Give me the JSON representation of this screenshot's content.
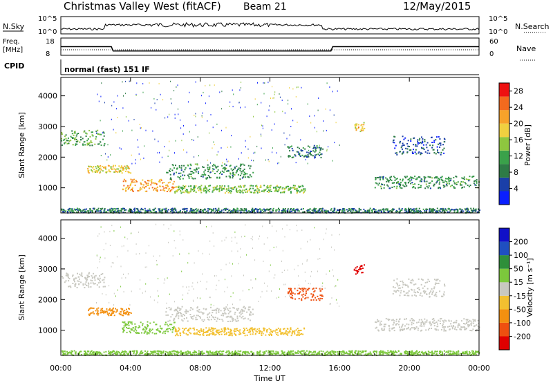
{
  "header": {
    "station": "Christmas Valley West (fitACF)",
    "beam": "Beam 21",
    "date": "12/May/2015"
  },
  "strip": {
    "nsky_label": "N.Sky",
    "nsky_ticks": [
      "10^5",
      "10^0"
    ],
    "nsearch_label": "N.Search",
    "freq_label_1": "Freq.",
    "freq_label_2": "[MHz]",
    "freq_ticks": [
      "18",
      "8"
    ],
    "nave_label": "Nave",
    "nave_ticks": [
      "60",
      "0"
    ],
    "cpid_label": "CPID",
    "mode": "normal (fast) 151 IF"
  },
  "colors": {
    "power": [
      "#0a1fff",
      "#1a3fa8",
      "#2e7b46",
      "#3aa14a",
      "#8ec63f",
      "#f0d040",
      "#f7a22a",
      "#f36a1e",
      "#e11"
    ],
    "velocity": [
      "#e00000",
      "#ee5010",
      "#f39010",
      "#f2c030",
      "#c8c8c0",
      "#7cc83c",
      "#2f8f3a",
      "#1f4fc0",
      "#1010c8"
    ]
  },
  "chart_data": [
    {
      "type": "line",
      "name": "sky-noise-and-nave",
      "x": [
        0,
        2.9,
        3,
        15.5,
        15.6,
        24
      ],
      "series": [
        {
          "name": "Freq.",
          "values": [
            13,
            13,
            10.5,
            10.5,
            13,
            13
          ]
        }
      ],
      "xlim": [
        0,
        24
      ],
      "ylim": [
        8,
        18
      ]
    },
    {
      "type": "heatmap",
      "name": "power",
      "title": "Power [dB]",
      "xlabel": "Time UT",
      "ylabel": "Slant Range [km]",
      "xticks": [
        "00:00",
        "04:00",
        "08:00",
        "12:00",
        "16:00",
        "20:00",
        "00:00"
      ],
      "yticks": [
        "1000",
        "2000",
        "3000",
        "4000"
      ],
      "ytick_values": [
        1000,
        2000,
        3000,
        4000
      ],
      "xlim": [
        0,
        24
      ],
      "ylim": [
        180,
        4600
      ],
      "colorbar_ticks": [
        "4",
        "8",
        "12",
        "16",
        "20",
        "24",
        "28"
      ],
      "colorbar_range": [
        0,
        30
      ],
      "echo_regions": [
        {
          "t0": 0,
          "t1": 2.5,
          "r0": 2400,
          "r1": 2900,
          "value": 12
        },
        {
          "t0": 1.5,
          "t1": 4,
          "r0": 1500,
          "r1": 1750,
          "value": 18
        },
        {
          "t0": 3.5,
          "t1": 6.5,
          "r0": 900,
          "r1": 1300,
          "value": 22
        },
        {
          "t0": 6.5,
          "t1": 14,
          "r0": 850,
          "r1": 1100,
          "value": 14
        },
        {
          "t0": 6,
          "t1": 11,
          "r0": 1300,
          "r1": 1800,
          "value": 10
        },
        {
          "t0": 13,
          "t1": 15,
          "r0": 2000,
          "r1": 2400,
          "value": 8
        },
        {
          "t0": 16.8,
          "t1": 17.4,
          "r0": 2850,
          "r1": 3150,
          "value": 20
        },
        {
          "t0": 18,
          "t1": 24,
          "r0": 1000,
          "r1": 1400,
          "value": 10
        },
        {
          "t0": 19,
          "t1": 22,
          "r0": 2100,
          "r1": 2700,
          "value": 6
        },
        {
          "t0": 0,
          "t1": 24,
          "r0": 200,
          "r1": 350,
          "value": 8
        }
      ]
    },
    {
      "type": "heatmap",
      "name": "velocity",
      "title": "Velocity [m s⁻¹]",
      "xlabel": "Time UT",
      "ylabel": "Slant Range [km]",
      "xticks": [
        "00:00",
        "04:00",
        "08:00",
        "12:00",
        "16:00",
        "20:00",
        "00:00"
      ],
      "yticks": [
        "1000",
        "2000",
        "3000",
        "4000"
      ],
      "ytick_values": [
        1000,
        2000,
        3000,
        4000
      ],
      "xlim": [
        0,
        24
      ],
      "ylim": [
        180,
        4600
      ],
      "colorbar_ticks": [
        "-200",
        "-100",
        "-50",
        "-15",
        "15",
        "50",
        "100",
        "200"
      ],
      "echo_regions": [
        {
          "t0": 0,
          "t1": 2.5,
          "r0": 2400,
          "r1": 2900,
          "value": 0
        },
        {
          "t0": 1.5,
          "t1": 4,
          "r0": 1500,
          "r1": 1750,
          "value": -60
        },
        {
          "t0": 3.5,
          "t1": 6.5,
          "r0": 900,
          "r1": 1300,
          "value": 30
        },
        {
          "t0": 6.5,
          "t1": 14,
          "r0": 850,
          "r1": 1100,
          "value": -40
        },
        {
          "t0": 6,
          "t1": 11,
          "r0": 1300,
          "r1": 1800,
          "value": 0
        },
        {
          "t0": 13,
          "t1": 15,
          "r0": 2000,
          "r1": 2400,
          "value": -150
        },
        {
          "t0": 16.8,
          "t1": 17.4,
          "r0": 2850,
          "r1": 3150,
          "value": -220
        },
        {
          "t0": 18,
          "t1": 24,
          "r0": 1000,
          "r1": 1400,
          "value": 0
        },
        {
          "t0": 19,
          "t1": 22,
          "r0": 2100,
          "r1": 2700,
          "value": 0
        },
        {
          "t0": 0,
          "t1": 24,
          "r0": 200,
          "r1": 350,
          "value": 20
        }
      ]
    }
  ]
}
